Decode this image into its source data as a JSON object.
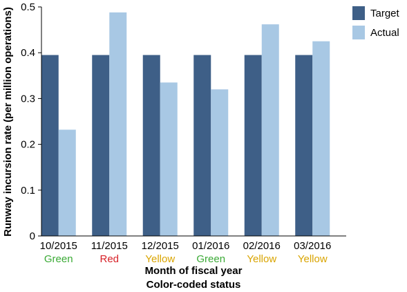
{
  "chart_data": {
    "type": "bar",
    "categories": [
      "10/2015",
      "11/2015",
      "12/2015",
      "01/2016",
      "02/2016",
      "03/2016"
    ],
    "status": [
      "Green",
      "Red",
      "Yellow",
      "Green",
      "Yellow",
      "Yellow"
    ],
    "series": [
      {
        "name": "Target",
        "values": [
          0.395,
          0.395,
          0.395,
          0.395,
          0.395,
          0.395
        ]
      },
      {
        "name": "Actual",
        "values": [
          0.232,
          0.488,
          0.335,
          0.32,
          0.462,
          0.425
        ]
      }
    ],
    "ylabel": "Runway incursion rate (per million operations)",
    "xlabel": "Month of fiscal year",
    "xlabel2": "Color-coded status",
    "ylim": [
      0,
      0.5
    ],
    "yticks": [
      "0",
      "0.1",
      "0.2",
      "0.3",
      "0.4",
      "0.5"
    ],
    "legend": "top-right",
    "grid": false
  },
  "colors": {
    "Target": "#3e5f87",
    "Actual": "#a8c8e4",
    "Green": "#3aaa35",
    "Red": "#d71f26",
    "Yellow": "#d9a400",
    "axis": "#000000"
  }
}
